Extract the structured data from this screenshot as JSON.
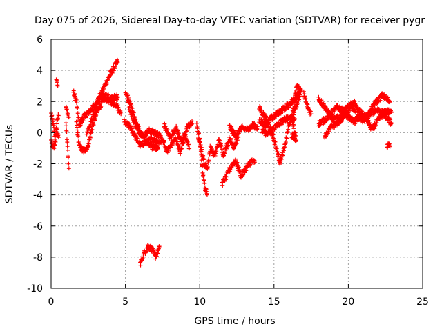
{
  "chart_data": {
    "type": "scatter",
    "title": "Day 075 of 2026, Sidereal Day-to-day VTEC variation (SDTVAR) for receiver pygr",
    "xlabel": "GPS time / hours",
    "ylabel": "SDTVAR / TECUs",
    "xlim": [
      0,
      25
    ],
    "ylim": [
      -10,
      6
    ],
    "xticks": [
      0,
      5,
      10,
      15,
      20,
      25
    ],
    "yticks": [
      -10,
      -8,
      -6,
      -4,
      -2,
      0,
      2,
      4,
      6
    ],
    "grid": true,
    "marker": "+",
    "series": [
      {
        "name": "SDTVAR",
        "color": "#ff0000",
        "tracks": [
          [
            [
              0.0,
              1.2
            ],
            [
              0.15,
              0.5
            ],
            [
              0.3,
              -0.5
            ],
            [
              0.4,
              0.8
            ],
            [
              0.5,
              1.1
            ]
          ],
          [
            [
              0.0,
              -0.6
            ],
            [
              0.2,
              -1.0
            ],
            [
              0.35,
              0.2
            ],
            [
              0.5,
              -0.3
            ]
          ],
          [
            [
              0.35,
              3.5
            ],
            [
              0.45,
              3.0
            ]
          ],
          [
            [
              1.0,
              0.8
            ],
            [
              1.1,
              -0.8
            ],
            [
              1.2,
              -2.3
            ]
          ],
          [
            [
              1.0,
              1.6
            ],
            [
              1.2,
              1.0
            ]
          ],
          [
            [
              1.5,
              2.6
            ],
            [
              1.7,
              2.0
            ],
            [
              1.9,
              0.5
            ],
            [
              2.2,
              1.0
            ],
            [
              2.6,
              1.4
            ],
            [
              3.0,
              1.8
            ],
            [
              3.5,
              2.8
            ],
            [
              4.0,
              3.8
            ],
            [
              4.5,
              4.6
            ]
          ],
          [
            [
              1.7,
              0.6
            ],
            [
              1.9,
              -0.9
            ],
            [
              2.2,
              -1.2
            ],
            [
              2.5,
              -0.8
            ],
            [
              2.8,
              0.5
            ],
            [
              3.2,
              1.6
            ],
            [
              3.6,
              2.2
            ],
            [
              4.0,
              2.0
            ],
            [
              4.4,
              1.8
            ],
            [
              4.7,
              1.2
            ]
          ],
          [
            [
              2.4,
              0.0
            ],
            [
              2.8,
              1.0
            ],
            [
              3.2,
              2.2
            ],
            [
              3.6,
              2.4
            ],
            [
              4.0,
              2.2
            ],
            [
              4.5,
              2.3
            ]
          ],
          [
            [
              5.0,
              2.6
            ],
            [
              5.3,
              2.0
            ],
            [
              5.6,
              1.0
            ],
            [
              6.0,
              0.0
            ],
            [
              6.4,
              -0.6
            ],
            [
              6.8,
              -0.9
            ],
            [
              7.2,
              -1.0
            ]
          ],
          [
            [
              4.9,
              0.7
            ],
            [
              5.3,
              0.4
            ],
            [
              5.7,
              -0.3
            ],
            [
              6.0,
              -0.8
            ],
            [
              6.4,
              -0.6
            ],
            [
              6.8,
              -0.4
            ],
            [
              7.2,
              -0.6
            ],
            [
              7.6,
              -0.5
            ]
          ],
          [
            [
              5.2,
              1.8
            ],
            [
              5.5,
              0.9
            ],
            [
              5.8,
              0.2
            ],
            [
              6.2,
              -0.2
            ],
            [
              6.6,
              0.1
            ],
            [
              7.0,
              0.0
            ],
            [
              7.4,
              -0.3
            ]
          ],
          [
            [
              6.0,
              -8.4
            ],
            [
              6.2,
              -7.9
            ],
            [
              6.5,
              -7.3
            ],
            [
              6.8,
              -7.5
            ],
            [
              7.0,
              -8.0
            ],
            [
              7.3,
              -7.4
            ]
          ],
          [
            [
              7.5,
              -0.5
            ],
            [
              7.8,
              -1.2
            ],
            [
              8.1,
              -0.7
            ],
            [
              8.4,
              -0.4
            ],
            [
              8.7,
              -1.3
            ],
            [
              9.0,
              -0.2
            ],
            [
              9.3,
              -1.0
            ]
          ],
          [
            [
              7.6,
              0.5
            ],
            [
              8.0,
              -0.3
            ],
            [
              8.4,
              0.3
            ],
            [
              8.8,
              -0.6
            ],
            [
              9.2,
              0.4
            ],
            [
              9.5,
              0.6
            ]
          ],
          [
            [
              9.8,
              0.5
            ],
            [
              10.0,
              -0.5
            ],
            [
              10.1,
              -1.5
            ],
            [
              10.2,
              -2.5
            ],
            [
              10.35,
              -3.5
            ],
            [
              10.5,
              -4.0
            ]
          ],
          [
            [
              9.9,
              -0.2
            ],
            [
              10.1,
              -1.0
            ],
            [
              10.3,
              -2.0
            ],
            [
              10.5,
              -2.3
            ],
            [
              10.7,
              -1.2
            ]
          ],
          [
            [
              10.7,
              -0.9
            ],
            [
              11.0,
              -1.5
            ],
            [
              11.3,
              -0.5
            ],
            [
              11.6,
              -1.4
            ],
            [
              12.0,
              -0.4
            ],
            [
              12.3,
              -0.9
            ],
            [
              12.6,
              -0.3
            ]
          ],
          [
            [
              11.5,
              -3.3
            ],
            [
              11.8,
              -2.8
            ],
            [
              12.1,
              -2.2
            ],
            [
              12.4,
              -1.8
            ],
            [
              12.8,
              -2.8
            ],
            [
              13.1,
              -2.3
            ],
            [
              13.5,
              -1.8
            ],
            [
              13.7,
              -1.9
            ]
          ],
          [
            [
              12.0,
              0.4
            ],
            [
              12.4,
              -0.2
            ],
            [
              12.8,
              0.3
            ],
            [
              13.2,
              0.2
            ],
            [
              13.6,
              0.5
            ],
            [
              13.9,
              0.3
            ]
          ],
          [
            [
              14.0,
              1.6
            ],
            [
              14.4,
              1.0
            ],
            [
              14.8,
              0.2
            ],
            [
              15.1,
              -0.8
            ],
            [
              15.4,
              -1.9
            ],
            [
              15.7,
              -1.0
            ],
            [
              16.0,
              0.5
            ],
            [
              16.4,
              1.5
            ],
            [
              16.8,
              2.6
            ]
          ],
          [
            [
              14.0,
              0.8
            ],
            [
              14.4,
              0.5
            ],
            [
              14.8,
              0.9
            ],
            [
              15.2,
              1.2
            ],
            [
              15.6,
              1.5
            ],
            [
              16.0,
              1.8
            ],
            [
              16.4,
              2.2
            ],
            [
              16.8,
              2.8
            ]
          ],
          [
            [
              14.2,
              0.1
            ],
            [
              14.6,
              -0.1
            ],
            [
              15.0,
              0.3
            ],
            [
              15.5,
              0.7
            ],
            [
              16.0,
              1.0
            ],
            [
              16.4,
              0.9
            ]
          ],
          [
            [
              16.2,
              -0.2
            ],
            [
              16.5,
              -0.5
            ],
            [
              16.2,
              0.9
            ],
            [
              16.5,
              3.0
            ],
            [
              16.8,
              2.7
            ]
          ],
          [
            [
              17.0,
              2.5
            ],
            [
              17.2,
              1.8
            ],
            [
              17.5,
              1.2
            ]
          ],
          [
            [
              18.0,
              2.2
            ],
            [
              18.3,
              1.8
            ],
            [
              18.6,
              1.4
            ],
            [
              19.0,
              0.8
            ],
            [
              19.4,
              1.0
            ],
            [
              19.8,
              1.5
            ],
            [
              20.2,
              1.8
            ],
            [
              20.6,
              1.0
            ],
            [
              21.0,
              0.8
            ],
            [
              21.4,
              1.2
            ],
            [
              21.8,
              1.9
            ],
            [
              22.3,
              2.4
            ],
            [
              22.8,
              2.0
            ]
          ],
          [
            [
              18.0,
              0.6
            ],
            [
              18.4,
              0.8
            ],
            [
              18.8,
              1.2
            ],
            [
              19.2,
              1.6
            ],
            [
              19.6,
              1.5
            ],
            [
              20.0,
              1.0
            ],
            [
              20.4,
              0.7
            ],
            [
              20.8,
              1.0
            ],
            [
              21.2,
              0.9
            ],
            [
              21.6,
              0.2
            ],
            [
              22.0,
              0.8
            ],
            [
              22.5,
              1.4
            ],
            [
              22.9,
              1.3
            ]
          ],
          [
            [
              18.4,
              -0.2
            ],
            [
              18.8,
              0.3
            ],
            [
              19.2,
              0.6
            ],
            [
              19.6,
              0.9
            ],
            [
              20.0,
              1.4
            ],
            [
              20.4,
              1.9
            ],
            [
              20.8,
              1.3
            ],
            [
              21.2,
              1.0
            ],
            [
              21.6,
              1.3
            ],
            [
              22.0,
              1.5
            ],
            [
              22.5,
              1.1
            ],
            [
              22.9,
              0.6
            ]
          ],
          [
            [
              22.6,
              -0.8
            ],
            [
              22.8,
              -0.9
            ]
          ]
        ]
      }
    ]
  }
}
